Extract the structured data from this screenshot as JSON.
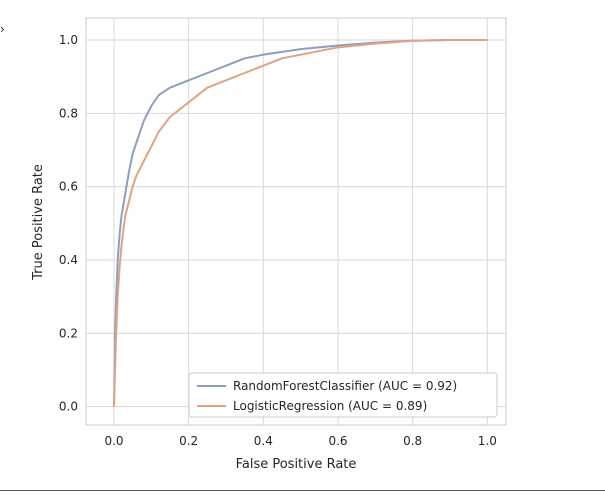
{
  "chart_data": {
    "type": "line",
    "xlabel": "False Positive Rate",
    "ylabel": "True Positive Rate",
    "xlim": [
      -0.075,
      1.05
    ],
    "ylim": [
      -0.05,
      1.06
    ],
    "xticks": [
      "0.0",
      "0.2",
      "0.4",
      "0.6",
      "0.8",
      "1.0"
    ],
    "yticks": [
      "0.0",
      "0.2",
      "0.4",
      "0.6",
      "0.8",
      "1.0"
    ],
    "grid": true,
    "legend_position": "lower-right",
    "series": [
      {
        "name": "RandomForestClassifier (AUC = 0.92)",
        "color": "#8c9fbf",
        "x": [
          0.0,
          0.003,
          0.006,
          0.01,
          0.015,
          0.02,
          0.03,
          0.04,
          0.05,
          0.06,
          0.08,
          0.1,
          0.12,
          0.15,
          0.2,
          0.25,
          0.3,
          0.35,
          0.4,
          0.5,
          0.6,
          0.7,
          0.8,
          0.9,
          1.0
        ],
        "y": [
          0.0,
          0.2,
          0.3,
          0.4,
          0.47,
          0.52,
          0.58,
          0.64,
          0.69,
          0.72,
          0.78,
          0.82,
          0.85,
          0.87,
          0.89,
          0.91,
          0.93,
          0.95,
          0.96,
          0.975,
          0.985,
          0.993,
          0.998,
          1.0,
          1.0
        ]
      },
      {
        "name": "LogisticRegression (AUC = 0.89)",
        "color": "#e0a283",
        "x": [
          0.0,
          0.005,
          0.01,
          0.015,
          0.02,
          0.03,
          0.04,
          0.05,
          0.06,
          0.08,
          0.1,
          0.12,
          0.15,
          0.2,
          0.25,
          0.3,
          0.35,
          0.4,
          0.45,
          0.5,
          0.6,
          0.7,
          0.8,
          0.9,
          1.0
        ],
        "y": [
          0.0,
          0.18,
          0.3,
          0.38,
          0.44,
          0.52,
          0.56,
          0.6,
          0.63,
          0.67,
          0.71,
          0.75,
          0.79,
          0.83,
          0.87,
          0.89,
          0.91,
          0.93,
          0.95,
          0.96,
          0.98,
          0.99,
          0.998,
          1.0,
          1.0
        ]
      }
    ]
  }
}
